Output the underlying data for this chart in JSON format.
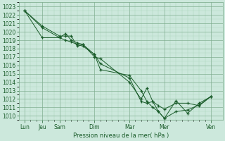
{
  "title": "",
  "xlabel": "Pression niveau de la mer( hPa )",
  "background_color": "#cce8dc",
  "grid_color_major": "#7aaa8a",
  "grid_color_minor": "#9ac8aa",
  "line_color": "#1a5c2a",
  "ylim": [
    1009.5,
    1023.5
  ],
  "yticks": [
    1010,
    1011,
    1012,
    1013,
    1014,
    1015,
    1016,
    1017,
    1018,
    1019,
    1020,
    1021,
    1022,
    1023
  ],
  "day_positions": [
    0,
    3,
    6,
    12,
    18,
    24,
    32
  ],
  "day_labels": [
    "Lun",
    "Jeu",
    "Sam",
    "Dim",
    "Mar",
    "Mer",
    "Ven"
  ],
  "xlim": [
    -1,
    34
  ],
  "series": [
    {
      "x": [
        0,
        3,
        6,
        7,
        8,
        9,
        10,
        12,
        13,
        18,
        20,
        21,
        22,
        23,
        24,
        26,
        28,
        30,
        32
      ],
      "y": [
        1022.5,
        1020.5,
        1019.3,
        1019.8,
        1019.0,
        1018.7,
        1018.5,
        1017.0,
        1016.8,
        1014.0,
        1012.0,
        1013.3,
        1011.7,
        1011.2,
        1010.8,
        1011.5,
        1011.5,
        1011.2,
        1012.3
      ]
    },
    {
      "x": [
        0,
        3,
        6,
        7,
        8,
        9,
        10,
        12,
        13,
        18,
        20,
        21,
        22,
        23,
        24,
        26,
        28,
        30,
        32
      ],
      "y": [
        1022.5,
        1020.7,
        1019.5,
        1019.5,
        1019.5,
        1018.3,
        1018.5,
        1017.3,
        1016.2,
        1014.5,
        1011.7,
        1011.5,
        1011.7,
        1010.5,
        1009.7,
        1011.8,
        1010.3,
        1011.5,
        1012.3
      ]
    },
    {
      "x": [
        0,
        3,
        6,
        7,
        8,
        9,
        10,
        12,
        13,
        18,
        20,
        21,
        22,
        23,
        24,
        26,
        28,
        30,
        32
      ],
      "y": [
        1022.5,
        1019.3,
        1019.3,
        1019.0,
        1018.8,
        1018.5,
        1018.3,
        1017.3,
        1015.5,
        1014.8,
        1013.0,
        1011.7,
        1011.0,
        1010.5,
        1009.7,
        1010.5,
        1010.7,
        1011.3,
        1012.3
      ]
    }
  ]
}
